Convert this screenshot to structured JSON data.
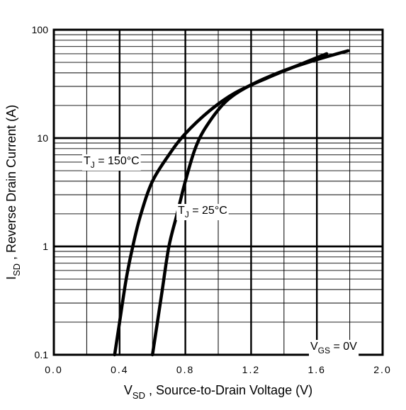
{
  "chart_data": {
    "type": "line",
    "title": "",
    "xlabel": {
      "main": "V",
      "sub": "SD",
      "rest": " , Source-to-Drain Voltage (V)"
    },
    "ylabel": {
      "main": "I",
      "sub": "SD",
      "rest": " , Reverse Drain Current (A)"
    },
    "xscale": "linear",
    "yscale": "log",
    "xlim": [
      0.0,
      2.0
    ],
    "ylim": [
      0.1,
      100
    ],
    "grid": true,
    "x_tick_labels": [
      "0.0",
      "0.4",
      "0.8",
      "1.2",
      "1.6",
      "2.0"
    ],
    "y_tick_labels": [
      "0.1",
      "1",
      "10",
      "100"
    ],
    "annotation": {
      "main": "V",
      "sub": "GS",
      "rest": " = 0V"
    },
    "series": [
      {
        "name": "TJ = 150°C",
        "label": {
          "main": "T",
          "sub": "J",
          "rest": " = 150°C"
        },
        "points": [
          [
            0.37,
            0.1
          ],
          [
            0.4,
            0.2
          ],
          [
            0.44,
            0.5
          ],
          [
            0.48,
            1.0
          ],
          [
            0.53,
            2.0
          ],
          [
            0.6,
            4.0
          ],
          [
            0.7,
            7.0
          ],
          [
            0.8,
            11.0
          ],
          [
            0.95,
            18.0
          ],
          [
            1.1,
            26.0
          ],
          [
            1.3,
            36.0
          ],
          [
            1.5,
            48.0
          ],
          [
            1.66,
            60.0
          ]
        ]
      },
      {
        "name": "TJ = 25°C",
        "label": {
          "main": "T",
          "sub": "J",
          "rest": " = 25°C"
        },
        "points": [
          [
            0.6,
            0.1
          ],
          [
            0.63,
            0.2
          ],
          [
            0.66,
            0.4
          ],
          [
            0.7,
            1.0
          ],
          [
            0.75,
            2.0
          ],
          [
            0.8,
            4.0
          ],
          [
            0.86,
            8.0
          ],
          [
            0.93,
            13.0
          ],
          [
            1.05,
            22.0
          ],
          [
            1.2,
            31.0
          ],
          [
            1.4,
            42.0
          ],
          [
            1.6,
            53.0
          ],
          [
            1.79,
            64.0
          ]
        ]
      }
    ]
  }
}
